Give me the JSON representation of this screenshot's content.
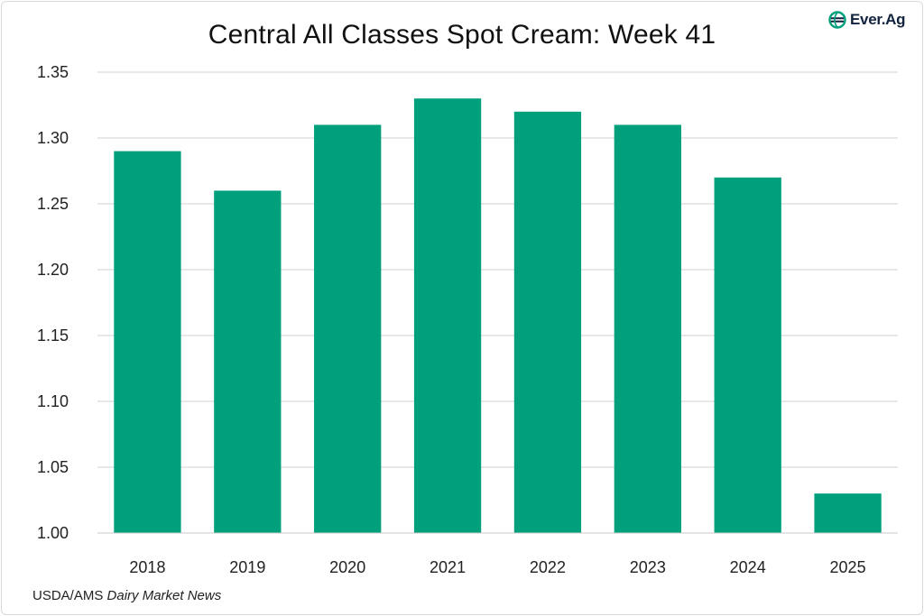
{
  "chart_data": {
    "type": "bar",
    "title": "Central All Classes Spot Cream: Week 41",
    "categories": [
      "2018",
      "2019",
      "2020",
      "2021",
      "2022",
      "2023",
      "2024",
      "2025"
    ],
    "values": [
      1.29,
      1.26,
      1.31,
      1.33,
      1.32,
      1.31,
      1.27,
      1.03
    ],
    "ylim": [
      1.0,
      1.35
    ],
    "yticks": [
      "1.00",
      "1.05",
      "1.10",
      "1.15",
      "1.20",
      "1.25",
      "1.30",
      "1.35"
    ],
    "xlabel": "",
    "ylabel": "",
    "grid": true,
    "bar_color": "#00A07D",
    "grid_color": "#d0d0d0"
  },
  "source": {
    "prefix": "USDA/AMS",
    "publication": "Dairy Market News"
  },
  "logo": {
    "text": "Ever.Ag",
    "icon": "ever-ag-globe-icon",
    "color": "#00A07D"
  }
}
